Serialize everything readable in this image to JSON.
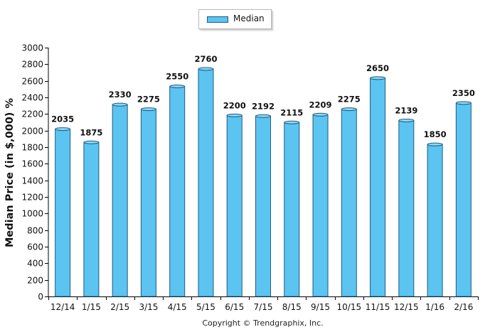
{
  "chart_data": {
    "type": "bar",
    "categories": [
      "12/14",
      "1/15",
      "2/15",
      "3/15",
      "4/15",
      "5/15",
      "6/15",
      "7/15",
      "8/15",
      "9/15",
      "10/15",
      "11/15",
      "12/15",
      "1/16",
      "2/16"
    ],
    "series": [
      {
        "name": "Median",
        "values": [
          2035,
          1875,
          2330,
          2275,
          2550,
          2760,
          2200,
          2192,
          2115,
          2209,
          2275,
          2650,
          2139,
          1850,
          2350
        ]
      }
    ],
    "ylabel": "Median Price (in $,000) %",
    "ylim": [
      0,
      3000
    ],
    "yticks": [
      0,
      200,
      400,
      600,
      800,
      1000,
      1200,
      1400,
      1600,
      1800,
      2000,
      2200,
      2400,
      2600,
      2800,
      3000
    ],
    "data_labels": true,
    "legend": "top-center",
    "grid": false,
    "bar_color": "#5bc4f1",
    "bar_edge_color": "#1e5a82"
  },
  "footer": {
    "copyright": "Copyright © Trendgraphix, Inc."
  }
}
